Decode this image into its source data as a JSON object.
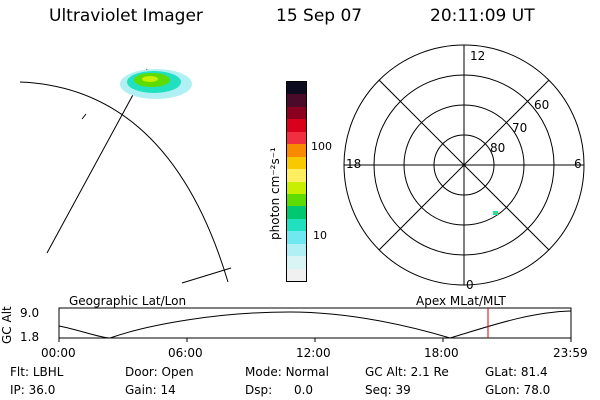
{
  "header": {
    "instrument": "Ultraviolet Imager",
    "date": "15 Sep 07",
    "time": "20:11:09 UT"
  },
  "colorbar": {
    "unit_label": "photon cm⁻²s⁻¹",
    "ticks": [
      "100",
      "10"
    ],
    "colors": [
      "#0c0c1e",
      "#4a0a2a",
      "#8a001e",
      "#d8001a",
      "#f03040",
      "#f88a00",
      "#f8c800",
      "#ffee60",
      "#c8ee00",
      "#5edc00",
      "#00c870",
      "#20e0c0",
      "#70e8f0",
      "#b0f0f4",
      "#d8f4f4",
      "#f0f0f0"
    ]
  },
  "polar_plot": {
    "mlt_labels": {
      "top": "12",
      "left": "18",
      "right": "6",
      "bottom": "0"
    },
    "lat_labels": [
      "60",
      "70",
      "80"
    ]
  },
  "timeline": {
    "y_axis_label": "GC Alt",
    "y_ticks": [
      "9.0",
      "1.8"
    ],
    "left_title": "Geographic Lat/Lon",
    "right_title": "Apex MLat/MLT",
    "x_ticks": [
      "00:00",
      "06:00",
      "12:00",
      "18:00",
      "23:59"
    ],
    "current_time_marker": "20:11:09"
  },
  "status": {
    "row1": [
      {
        "label": "Flt:",
        "value": "LBHL"
      },
      {
        "label": "Door:",
        "value": "Open"
      },
      {
        "label": "Mode:",
        "value": "Normal"
      },
      {
        "label": "GC Alt:",
        "value": "2.1 Re"
      },
      {
        "label": "GLat:",
        "value": "81.4"
      }
    ],
    "row2": [
      {
        "label": "IP:",
        "value": "36.0"
      },
      {
        "label": "Gain:",
        "value": "14"
      },
      {
        "label": "Dsp:",
        "value": "0.0"
      },
      {
        "label": "Seq:",
        "value": "39"
      },
      {
        "label": "GLon:",
        "value": "78.0"
      }
    ]
  },
  "colors": {
    "marker": "#e00000",
    "line": "#000000"
  }
}
